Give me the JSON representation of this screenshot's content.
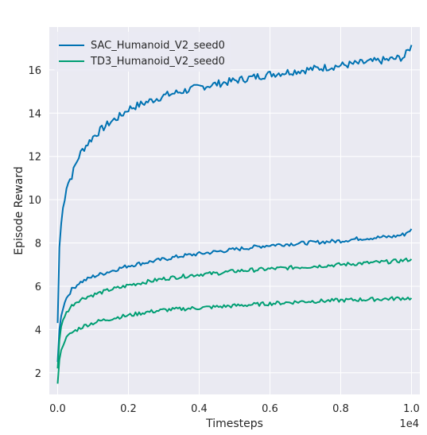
{
  "chart_data": {
    "type": "line",
    "title": "",
    "xlabel": "Timesteps",
    "ylabel": "Episode Reward",
    "x_offset_label": "1e4",
    "xlim": [
      -0.0236,
      1.0236
    ],
    "ylim": [
      1.0,
      17.98
    ],
    "x_ticks": [
      0.0,
      0.2,
      0.4,
      0.6,
      0.8,
      1.0
    ],
    "x_tick_labels": [
      "0.0",
      "0.2",
      "0.4",
      "0.6",
      "0.8",
      "1.0"
    ],
    "y_ticks": [
      2,
      4,
      6,
      8,
      10,
      12,
      14,
      16
    ],
    "y_tick_labels": [
      "2",
      "4",
      "6",
      "8",
      "10",
      "12",
      "14",
      "16"
    ],
    "grid": true,
    "legend_position": "top-left",
    "legend": [
      {
        "label": "SAC_Humanoid_V2_seed0",
        "color": "#0072b2"
      },
      {
        "label": "TD3_Humanoid_V2_seed0",
        "color": "#009e73"
      }
    ],
    "series": [
      {
        "color": "#0072b2",
        "x": [
          0.0,
          0.005,
          0.01,
          0.015,
          0.02,
          0.025,
          0.03,
          0.04,
          0.05,
          0.06,
          0.07,
          0.08,
          0.1,
          0.12,
          0.15,
          0.18,
          0.2,
          0.25,
          0.3,
          0.35,
          0.4,
          0.45,
          0.5,
          0.55,
          0.6,
          0.65,
          0.7,
          0.75,
          0.8,
          0.85,
          0.9,
          0.95,
          0.98,
          1.0
        ],
        "y": [
          4.3,
          7.8,
          8.9,
          9.6,
          10.1,
          10.6,
          10.8,
          11.1,
          11.6,
          12.0,
          12.3,
          12.5,
          12.9,
          13.2,
          13.6,
          13.9,
          14.2,
          14.5,
          14.8,
          15.0,
          15.2,
          15.35,
          15.5,
          15.65,
          15.8,
          15.9,
          16.0,
          16.1,
          16.2,
          16.3,
          16.4,
          16.5,
          16.6,
          17.15
        ]
      },
      {
        "color": "#0072b2",
        "x": [
          0.0,
          0.005,
          0.01,
          0.015,
          0.02,
          0.03,
          0.04,
          0.05,
          0.06,
          0.08,
          0.1,
          0.12,
          0.15,
          0.18,
          0.2,
          0.25,
          0.3,
          0.35,
          0.4,
          0.45,
          0.5,
          0.55,
          0.6,
          0.65,
          0.7,
          0.75,
          0.8,
          0.85,
          0.9,
          0.95,
          0.98,
          1.0
        ],
        "y": [
          2.5,
          4.0,
          4.6,
          5.0,
          5.3,
          5.6,
          5.85,
          6.0,
          6.15,
          6.3,
          6.45,
          6.55,
          6.7,
          6.85,
          6.95,
          7.1,
          7.25,
          7.4,
          7.5,
          7.6,
          7.7,
          7.8,
          7.9,
          7.95,
          8.0,
          8.05,
          8.1,
          8.2,
          8.25,
          8.3,
          8.4,
          8.65
        ]
      },
      {
        "color": "#009e73",
        "x": [
          0.0,
          0.005,
          0.01,
          0.015,
          0.02,
          0.03,
          0.04,
          0.05,
          0.06,
          0.08,
          0.1,
          0.12,
          0.15,
          0.18,
          0.2,
          0.25,
          0.3,
          0.35,
          0.4,
          0.45,
          0.5,
          0.55,
          0.6,
          0.65,
          0.7,
          0.75,
          0.8,
          0.85,
          0.9,
          0.95,
          0.98,
          1.0
        ],
        "y": [
          2.2,
          3.5,
          4.1,
          4.4,
          4.65,
          4.9,
          5.1,
          5.25,
          5.35,
          5.5,
          5.6,
          5.7,
          5.85,
          5.95,
          6.05,
          6.2,
          6.35,
          6.45,
          6.55,
          6.6,
          6.7,
          6.75,
          6.8,
          6.85,
          6.9,
          6.95,
          7.0,
          7.05,
          7.1,
          7.15,
          7.2,
          7.25
        ]
      },
      {
        "color": "#009e73",
        "x": [
          0.0,
          0.005,
          0.01,
          0.015,
          0.02,
          0.03,
          0.04,
          0.05,
          0.06,
          0.08,
          0.1,
          0.12,
          0.15,
          0.18,
          0.2,
          0.25,
          0.3,
          0.35,
          0.4,
          0.45,
          0.5,
          0.55,
          0.6,
          0.65,
          0.7,
          0.75,
          0.8,
          0.85,
          0.9,
          0.95,
          0.98,
          1.0
        ],
        "y": [
          1.5,
          2.6,
          3.0,
          3.3,
          3.5,
          3.7,
          3.85,
          3.95,
          4.05,
          4.2,
          4.3,
          4.4,
          4.5,
          4.6,
          4.65,
          4.8,
          4.9,
          4.95,
          5.0,
          5.05,
          5.1,
          5.15,
          5.2,
          5.25,
          5.3,
          5.32,
          5.35,
          5.38,
          5.4,
          5.43,
          5.45,
          5.45
        ]
      }
    ]
  }
}
